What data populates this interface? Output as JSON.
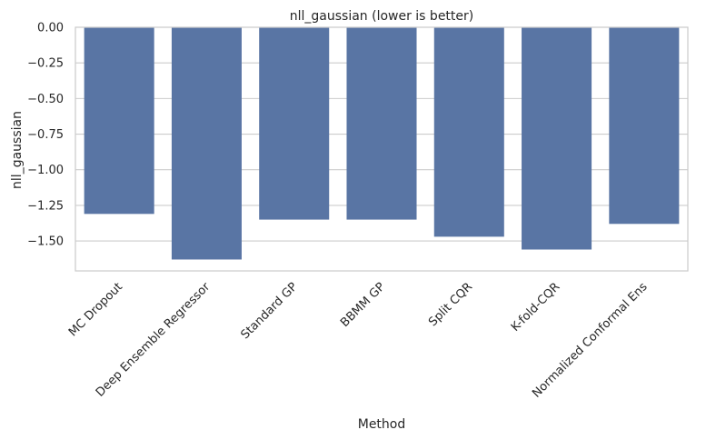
{
  "chart_data": {
    "type": "bar",
    "title": "nll_gaussian (lower is better)",
    "xlabel": "Method",
    "ylabel": "nll_gaussian",
    "categories": [
      "MC Dropout",
      "Deep Ensemble Regressor",
      "Standard GP",
      "BBMM GP",
      "Split CQR",
      "K-fold-CQR",
      "Normalized Conformal Ens"
    ],
    "values": [
      -1.31,
      -1.63,
      -1.35,
      -1.35,
      -1.47,
      -1.56,
      -1.38
    ],
    "ylim": [
      -1.71,
      0.0
    ],
    "yticks": [
      0.0,
      -0.25,
      -0.5,
      -0.75,
      -1.0,
      -1.25,
      -1.5
    ],
    "ytick_labels": [
      "0.00",
      "−0.25",
      "−0.50",
      "−0.75",
      "−1.00",
      "−1.25",
      "−1.50"
    ],
    "grid": "horizontal",
    "legend": "none",
    "bar_color": "#5975a4",
    "grid_color": "#cccccc",
    "axis_color": "#cccccc"
  }
}
